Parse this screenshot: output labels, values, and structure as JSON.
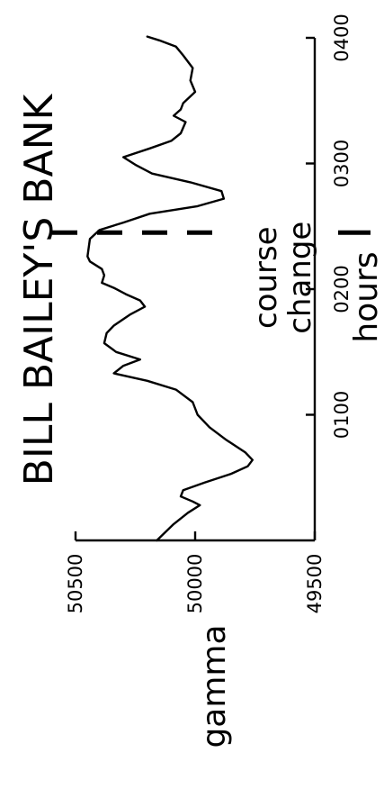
{
  "chart_data": {
    "type": "line",
    "orientation": "rotated-90-ccw",
    "title": "BILL BAILEY'S BANK",
    "xlabel": "hours",
    "ylabel": "gamma",
    "x_ticks": [
      {
        "value": 100,
        "label": "0100"
      },
      {
        "value": 200,
        "label": "0200"
      },
      {
        "value": 300,
        "label": "0300"
      },
      {
        "value": 400,
        "label": "0400"
      }
    ],
    "y_ticks": [
      {
        "value": 50500,
        "label": "50500"
      },
      {
        "value": 50000,
        "label": "50000"
      },
      {
        "value": 49500,
        "label": "49500"
      }
    ],
    "ylim": [
      49500,
      50500
    ],
    "annotation": {
      "x": 245,
      "label_line1": "course",
      "label_line2": "change"
    },
    "series": [
      {
        "values": [
          [
            0,
            50160
          ],
          [
            13,
            50090
          ],
          [
            22,
            50030
          ],
          [
            28,
            49980
          ],
          [
            31,
            50010
          ],
          [
            35,
            50060
          ],
          [
            40,
            50050
          ],
          [
            46,
            49960
          ],
          [
            53,
            49850
          ],
          [
            59,
            49780
          ],
          [
            64,
            49760
          ],
          [
            70,
            49790
          ],
          [
            80,
            49870
          ],
          [
            90,
            49940
          ],
          [
            100,
            49990
          ],
          [
            110,
            50010
          ],
          [
            120,
            50080
          ],
          [
            127,
            50200
          ],
          [
            133,
            50340
          ],
          [
            139,
            50300
          ],
          [
            144,
            50230
          ],
          [
            150,
            50330
          ],
          [
            157,
            50380
          ],
          [
            165,
            50370
          ],
          [
            171,
            50340
          ],
          [
            180,
            50270
          ],
          [
            186,
            50210
          ],
          [
            191,
            50230
          ],
          [
            196,
            50290
          ],
          [
            201,
            50340
          ],
          [
            205,
            50390
          ],
          [
            211,
            50380
          ],
          [
            216,
            50390
          ],
          [
            222,
            50440
          ],
          [
            226,
            50450
          ],
          [
            240,
            50440
          ],
          [
            247,
            50400
          ],
          [
            253,
            50300
          ],
          [
            260,
            50190
          ],
          [
            266,
            49990
          ],
          [
            272,
            49880
          ],
          [
            278,
            49890
          ],
          [
            285,
            50020
          ],
          [
            292,
            50180
          ],
          [
            299,
            50250
          ],
          [
            305,
            50300
          ],
          [
            312,
            50190
          ],
          [
            318,
            50100
          ],
          [
            324,
            50060
          ],
          [
            333,
            50040
          ],
          [
            338,
            50090
          ],
          [
            343,
            50060
          ],
          [
            348,
            50050
          ],
          [
            357,
            50000
          ],
          [
            366,
            50020
          ],
          [
            376,
            50010
          ],
          [
            386,
            50050
          ],
          [
            393,
            50080
          ],
          [
            398,
            50150
          ],
          [
            401,
            50200
          ]
        ]
      }
    ]
  }
}
